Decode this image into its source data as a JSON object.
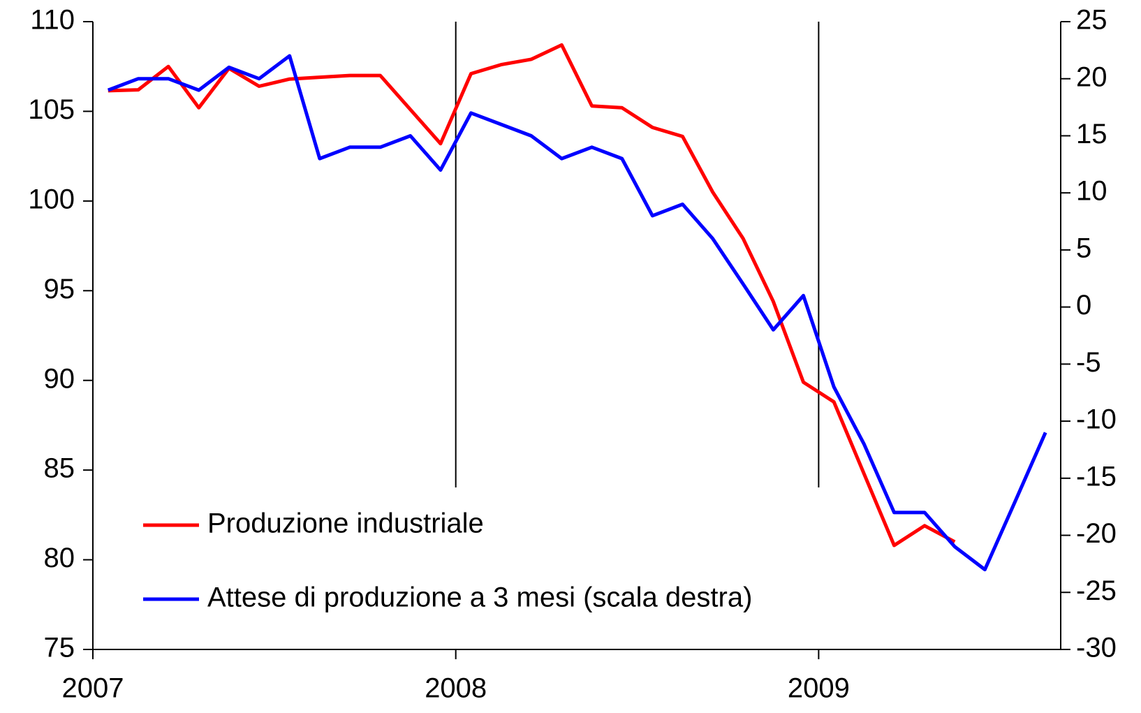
{
  "chart_data": {
    "type": "line",
    "x": [
      2007.042,
      2007.125,
      2007.208,
      2007.292,
      2007.375,
      2007.458,
      2007.542,
      2007.625,
      2007.708,
      2007.792,
      2007.875,
      2007.958,
      2008.042,
      2008.125,
      2008.208,
      2008.292,
      2008.375,
      2008.458,
      2008.542,
      2008.625,
      2008.708,
      2008.792,
      2008.875,
      2008.958,
      2009.042,
      2009.125,
      2009.208,
      2009.292,
      2009.375,
      2009.458,
      2009.542,
      2009.625
    ],
    "series": [
      {
        "name": "Produzione industriale",
        "color": "#ff0000",
        "values": [
          106.15,
          106.2,
          107.5,
          105.2,
          107.4,
          106.4,
          106.8,
          106.9,
          107.0,
          107.0,
          105.1,
          103.2,
          107.1,
          107.6,
          107.9,
          108.7,
          105.3,
          105.2,
          104.1,
          103.6,
          100.5,
          97.9,
          94.4,
          89.9,
          88.8,
          84.8,
          80.8,
          81.9,
          81.0,
          null,
          null,
          null
        ]
      },
      {
        "name": "Attese di produzione a 3 mesi (scala destra)",
        "color": "#0000ff",
        "axis": "y2",
        "values": [
          19,
          20,
          20,
          19,
          21,
          20,
          22,
          13,
          14,
          14,
          15,
          12,
          17,
          16,
          15,
          13,
          14,
          13,
          8,
          9,
          6,
          2,
          -2,
          1,
          -7,
          -12,
          -18,
          -18,
          -21,
          -23,
          -17,
          -11
        ]
      }
    ],
    "xlim": [
      2007,
      2009.667
    ],
    "xticks": [
      2007,
      2008,
      2009
    ],
    "ylim": [
      75,
      110
    ],
    "yticks": [
      75,
      80,
      85,
      90,
      95,
      100,
      105,
      110
    ],
    "y2lim": [
      -30,
      25
    ],
    "y2ticks": [
      -30,
      -25,
      -20,
      -15,
      -10,
      -5,
      0,
      5,
      10,
      15,
      20,
      25
    ],
    "xgrid": true,
    "legend": "lower left"
  }
}
